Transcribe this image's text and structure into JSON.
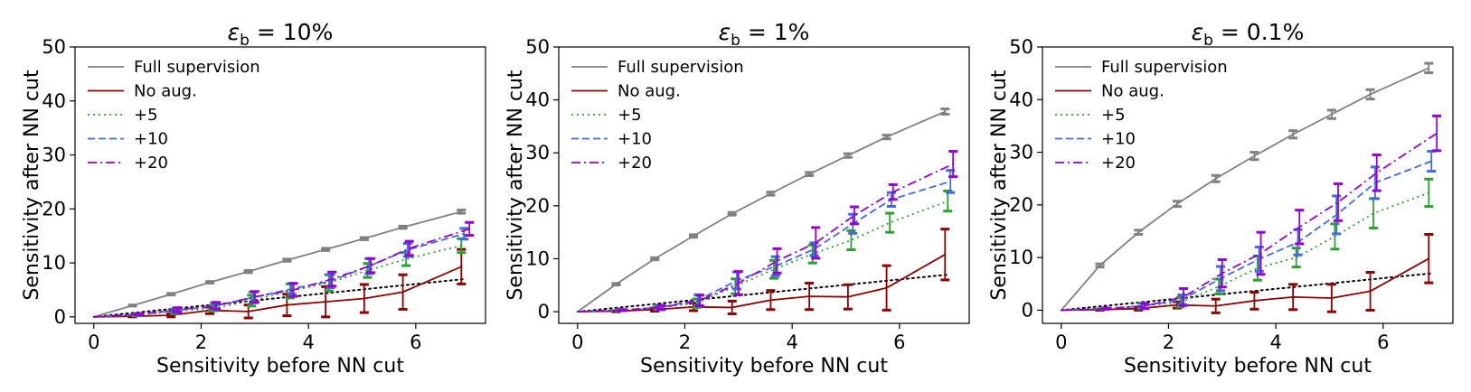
{
  "chart_data": [
    {
      "type": "line",
      "title": "ε_b = 10%",
      "title_symbol": "ε",
      "title_subscript": "b",
      "title_rest": " = 10%",
      "xlabel": "Sensitivity before NN cut",
      "ylabel": "Sensitivity after NN cut",
      "xlim": [
        -0.35,
        7.3
      ],
      "ylim": [
        -1.2,
        50
      ],
      "xticks": [
        0,
        2,
        4,
        6
      ],
      "yticks": [
        0,
        10,
        20,
        30,
        40,
        50
      ],
      "legend_position": "upper-left",
      "reference_line": {
        "x": [
          0,
          6.9
        ],
        "y": [
          0,
          7.0
        ],
        "color": "#000000",
        "style": "dotted"
      },
      "series": [
        {
          "name": "Full supervision",
          "color": "#808080",
          "style": "solid",
          "x": [
            0,
            0.72,
            1.44,
            2.16,
            2.88,
            3.6,
            4.32,
            5.04,
            5.76,
            6.85
          ],
          "y": [
            0,
            2.1,
            4.2,
            6.4,
            8.4,
            10.5,
            12.5,
            14.5,
            16.6,
            19.5
          ],
          "err": [
            0,
            0.1,
            0.15,
            0.15,
            0.2,
            0.2,
            0.2,
            0.2,
            0.2,
            0.3
          ]
        },
        {
          "name": "No aug.",
          "color": "#8b0000",
          "style": "solid",
          "x": [
            0,
            0.72,
            1.44,
            2.16,
            2.88,
            3.6,
            4.32,
            5.04,
            5.76,
            6.85
          ],
          "y": [
            0,
            0.1,
            0.3,
            1.2,
            1.0,
            2.2,
            2.8,
            3.4,
            4.6,
            9.3
          ],
          "err": [
            0,
            0.1,
            0.3,
            0.6,
            1.2,
            2.0,
            2.8,
            2.6,
            3.2,
            3.2
          ]
        },
        {
          "name": "+5",
          "color": "#2ca02c",
          "style": "dotted",
          "x": [
            0,
            0.78,
            1.5,
            2.22,
            2.94,
            3.66,
            4.38,
            5.1,
            5.82,
            6.85
          ],
          "y": [
            0,
            0.3,
            1.0,
            1.6,
            3.0,
            4.8,
            6.3,
            8.6,
            10.7,
            13.2
          ],
          "err": [
            0,
            0.1,
            0.4,
            0.5,
            1.0,
            1.3,
            1.5,
            1.3,
            1.2,
            1.3
          ]
        },
        {
          "name": "+10",
          "color": "#4169e1",
          "style": "dashed",
          "x": [
            0,
            0.81,
            1.53,
            2.25,
            2.97,
            3.69,
            4.41,
            5.13,
            5.85,
            6.9
          ],
          "y": [
            0,
            0.4,
            1.2,
            2.0,
            3.6,
            5.2,
            6.6,
            9.4,
            12.4,
            15.4
          ],
          "err": [
            0,
            0.1,
            0.4,
            0.6,
            1.0,
            1.0,
            1.2,
            1.4,
            1.2,
            1.0
          ]
        },
        {
          "name": "+20",
          "color": "#9400d3",
          "style": "dashdot",
          "x": [
            0,
            0.84,
            1.56,
            2.28,
            3.0,
            3.72,
            4.44,
            5.16,
            5.88,
            7.0
          ],
          "y": [
            0,
            0.5,
            1.3,
            2.1,
            3.7,
            5.0,
            7.0,
            9.5,
            12.7,
            16.3
          ],
          "err": [
            0,
            0.1,
            0.4,
            0.6,
            1.0,
            1.2,
            1.3,
            1.3,
            1.3,
            1.2
          ]
        }
      ]
    },
    {
      "type": "line",
      "title": "ε_b = 1%",
      "title_symbol": "ε",
      "title_subscript": "b",
      "title_rest": " = 1%",
      "xlabel": "Sensitivity before NN cut",
      "ylabel": "Sensitivity after NN cut",
      "xlim": [
        -0.35,
        7.3
      ],
      "ylim": [
        -2.2,
        50
      ],
      "xticks": [
        0,
        2,
        4,
        6
      ],
      "yticks": [
        0,
        10,
        20,
        30,
        40,
        50
      ],
      "legend_position": "upper-left",
      "reference_line": {
        "x": [
          0,
          6.9
        ],
        "y": [
          0,
          7.0
        ],
        "color": "#000000",
        "style": "dotted"
      },
      "series": [
        {
          "name": "Full supervision",
          "color": "#808080",
          "style": "solid",
          "x": [
            0,
            0.72,
            1.44,
            2.16,
            2.88,
            3.6,
            4.32,
            5.04,
            5.76,
            6.85
          ],
          "y": [
            0,
            5.2,
            10.0,
            14.3,
            18.5,
            22.3,
            26.0,
            29.5,
            33.0,
            37.8
          ],
          "err": [
            0,
            0.15,
            0.2,
            0.25,
            0.25,
            0.3,
            0.3,
            0.35,
            0.35,
            0.5
          ]
        },
        {
          "name": "No aug.",
          "color": "#8b0000",
          "style": "solid",
          "x": [
            0,
            0.72,
            1.44,
            2.16,
            2.88,
            3.6,
            4.32,
            5.04,
            5.76,
            6.85
          ],
          "y": [
            0,
            0.1,
            0.4,
            0.9,
            0.8,
            2.2,
            2.9,
            2.8,
            4.5,
            10.8
          ],
          "err": [
            0,
            0.1,
            0.3,
            0.7,
            1.2,
            1.8,
            2.5,
            2.3,
            4.2,
            4.8
          ]
        },
        {
          "name": "+5",
          "color": "#2ca02c",
          "style": "dotted",
          "x": [
            0,
            0.78,
            1.5,
            2.22,
            2.94,
            3.66,
            4.38,
            5.1,
            5.82,
            6.9
          ],
          "y": [
            0,
            0.3,
            0.8,
            1.6,
            4.8,
            8.0,
            10.9,
            13.5,
            16.8,
            20.9
          ],
          "err": [
            0,
            0.1,
            0.4,
            0.8,
            1.4,
            1.7,
            1.7,
            1.8,
            1.8,
            1.9
          ]
        },
        {
          "name": "+10",
          "color": "#4169e1",
          "style": "dashed",
          "x": [
            0,
            0.81,
            1.53,
            2.25,
            2.97,
            3.69,
            4.41,
            5.13,
            5.85,
            6.95
          ],
          "y": [
            0,
            0.3,
            0.8,
            2.2,
            5.9,
            8.6,
            11.8,
            16.6,
            21.2,
            24.6
          ],
          "err": [
            0,
            0.1,
            0.4,
            1.0,
            1.6,
            1.8,
            1.2,
            1.8,
            1.3,
            2.1
          ]
        },
        {
          "name": "+20",
          "color": "#9400d3",
          "style": "dashdot",
          "x": [
            0,
            0.84,
            1.56,
            2.28,
            3.0,
            3.72,
            4.44,
            5.16,
            5.88,
            7.0
          ],
          "y": [
            0,
            0.3,
            0.8,
            2.1,
            5.4,
            9.6,
            13.0,
            18.2,
            22.6,
            27.9
          ],
          "err": [
            0,
            0.1,
            0.4,
            1.0,
            2.2,
            2.3,
            2.9,
            1.6,
            1.4,
            2.4
          ]
        }
      ]
    },
    {
      "type": "line",
      "title": "ε_b = 0.1%",
      "title_symbol": "ε",
      "title_subscript": "b",
      "title_rest": " = 0.1%",
      "xlabel": "Sensitivity before NN cut",
      "ylabel": "Sensitivity after NN cut",
      "xlim": [
        -0.35,
        7.3
      ],
      "ylim": [
        -2.5,
        50
      ],
      "xticks": [
        0,
        2,
        4,
        6
      ],
      "yticks": [
        0,
        10,
        20,
        30,
        40,
        50
      ],
      "legend_position": "upper-left",
      "reference_line": {
        "x": [
          0,
          6.9
        ],
        "y": [
          0,
          7.0
        ],
        "color": "#000000",
        "style": "dotted"
      },
      "series": [
        {
          "name": "Full supervision",
          "color": "#808080",
          "style": "solid",
          "x": [
            0,
            0.72,
            1.44,
            2.16,
            2.88,
            3.6,
            4.32,
            5.04,
            5.76,
            6.85
          ],
          "y": [
            0,
            8.5,
            14.8,
            20.2,
            25.0,
            29.3,
            33.4,
            37.2,
            41.0,
            46.0
          ],
          "err": [
            0,
            0.3,
            0.4,
            0.5,
            0.6,
            0.7,
            0.7,
            0.8,
            0.9,
            0.9
          ]
        },
        {
          "name": "No aug.",
          "color": "#8b0000",
          "style": "solid",
          "x": [
            0,
            0.72,
            1.44,
            2.16,
            2.88,
            3.6,
            4.32,
            5.04,
            5.76,
            6.85
          ],
          "y": [
            0,
            0.1,
            0.3,
            1.0,
            0.8,
            1.8,
            2.5,
            2.3,
            3.6,
            9.8
          ],
          "err": [
            0,
            0.1,
            0.3,
            0.6,
            1.3,
            1.6,
            2.4,
            2.6,
            3.6,
            4.6
          ]
        },
        {
          "name": "+5",
          "color": "#2ca02c",
          "style": "dotted",
          "x": [
            0,
            0.78,
            1.5,
            2.22,
            2.94,
            3.66,
            4.38,
            5.1,
            5.82,
            6.85
          ],
          "y": [
            0,
            0.3,
            0.8,
            1.5,
            4.5,
            8.0,
            10.0,
            14.0,
            18.4,
            22.3
          ],
          "err": [
            0,
            0.1,
            0.5,
            0.9,
            1.4,
            2.3,
            1.8,
            2.4,
            2.8,
            2.6
          ]
        },
        {
          "name": "+10",
          "color": "#4169e1",
          "style": "dashed",
          "x": [
            0,
            0.81,
            1.53,
            2.25,
            2.97,
            3.69,
            4.41,
            5.13,
            5.85,
            6.9
          ],
          "y": [
            0,
            0.3,
            0.8,
            2.0,
            6.0,
            9.7,
            12.9,
            18.1,
            24.2,
            28.3
          ],
          "err": [
            0,
            0.1,
            0.5,
            0.9,
            2.3,
            2.3,
            2.4,
            3.6,
            3.0,
            1.9
          ]
        },
        {
          "name": "+20",
          "color": "#9400d3",
          "style": "dashdot",
          "x": [
            0,
            0.84,
            1.56,
            2.28,
            3.0,
            3.72,
            4.44,
            5.16,
            5.88,
            7.0
          ],
          "y": [
            0,
            0.3,
            0.8,
            2.5,
            7.0,
            10.8,
            15.8,
            20.5,
            26.1,
            33.6
          ],
          "err": [
            0,
            0.1,
            0.5,
            1.6,
            2.6,
            4.0,
            3.2,
            3.5,
            3.4,
            3.3
          ]
        }
      ]
    }
  ]
}
